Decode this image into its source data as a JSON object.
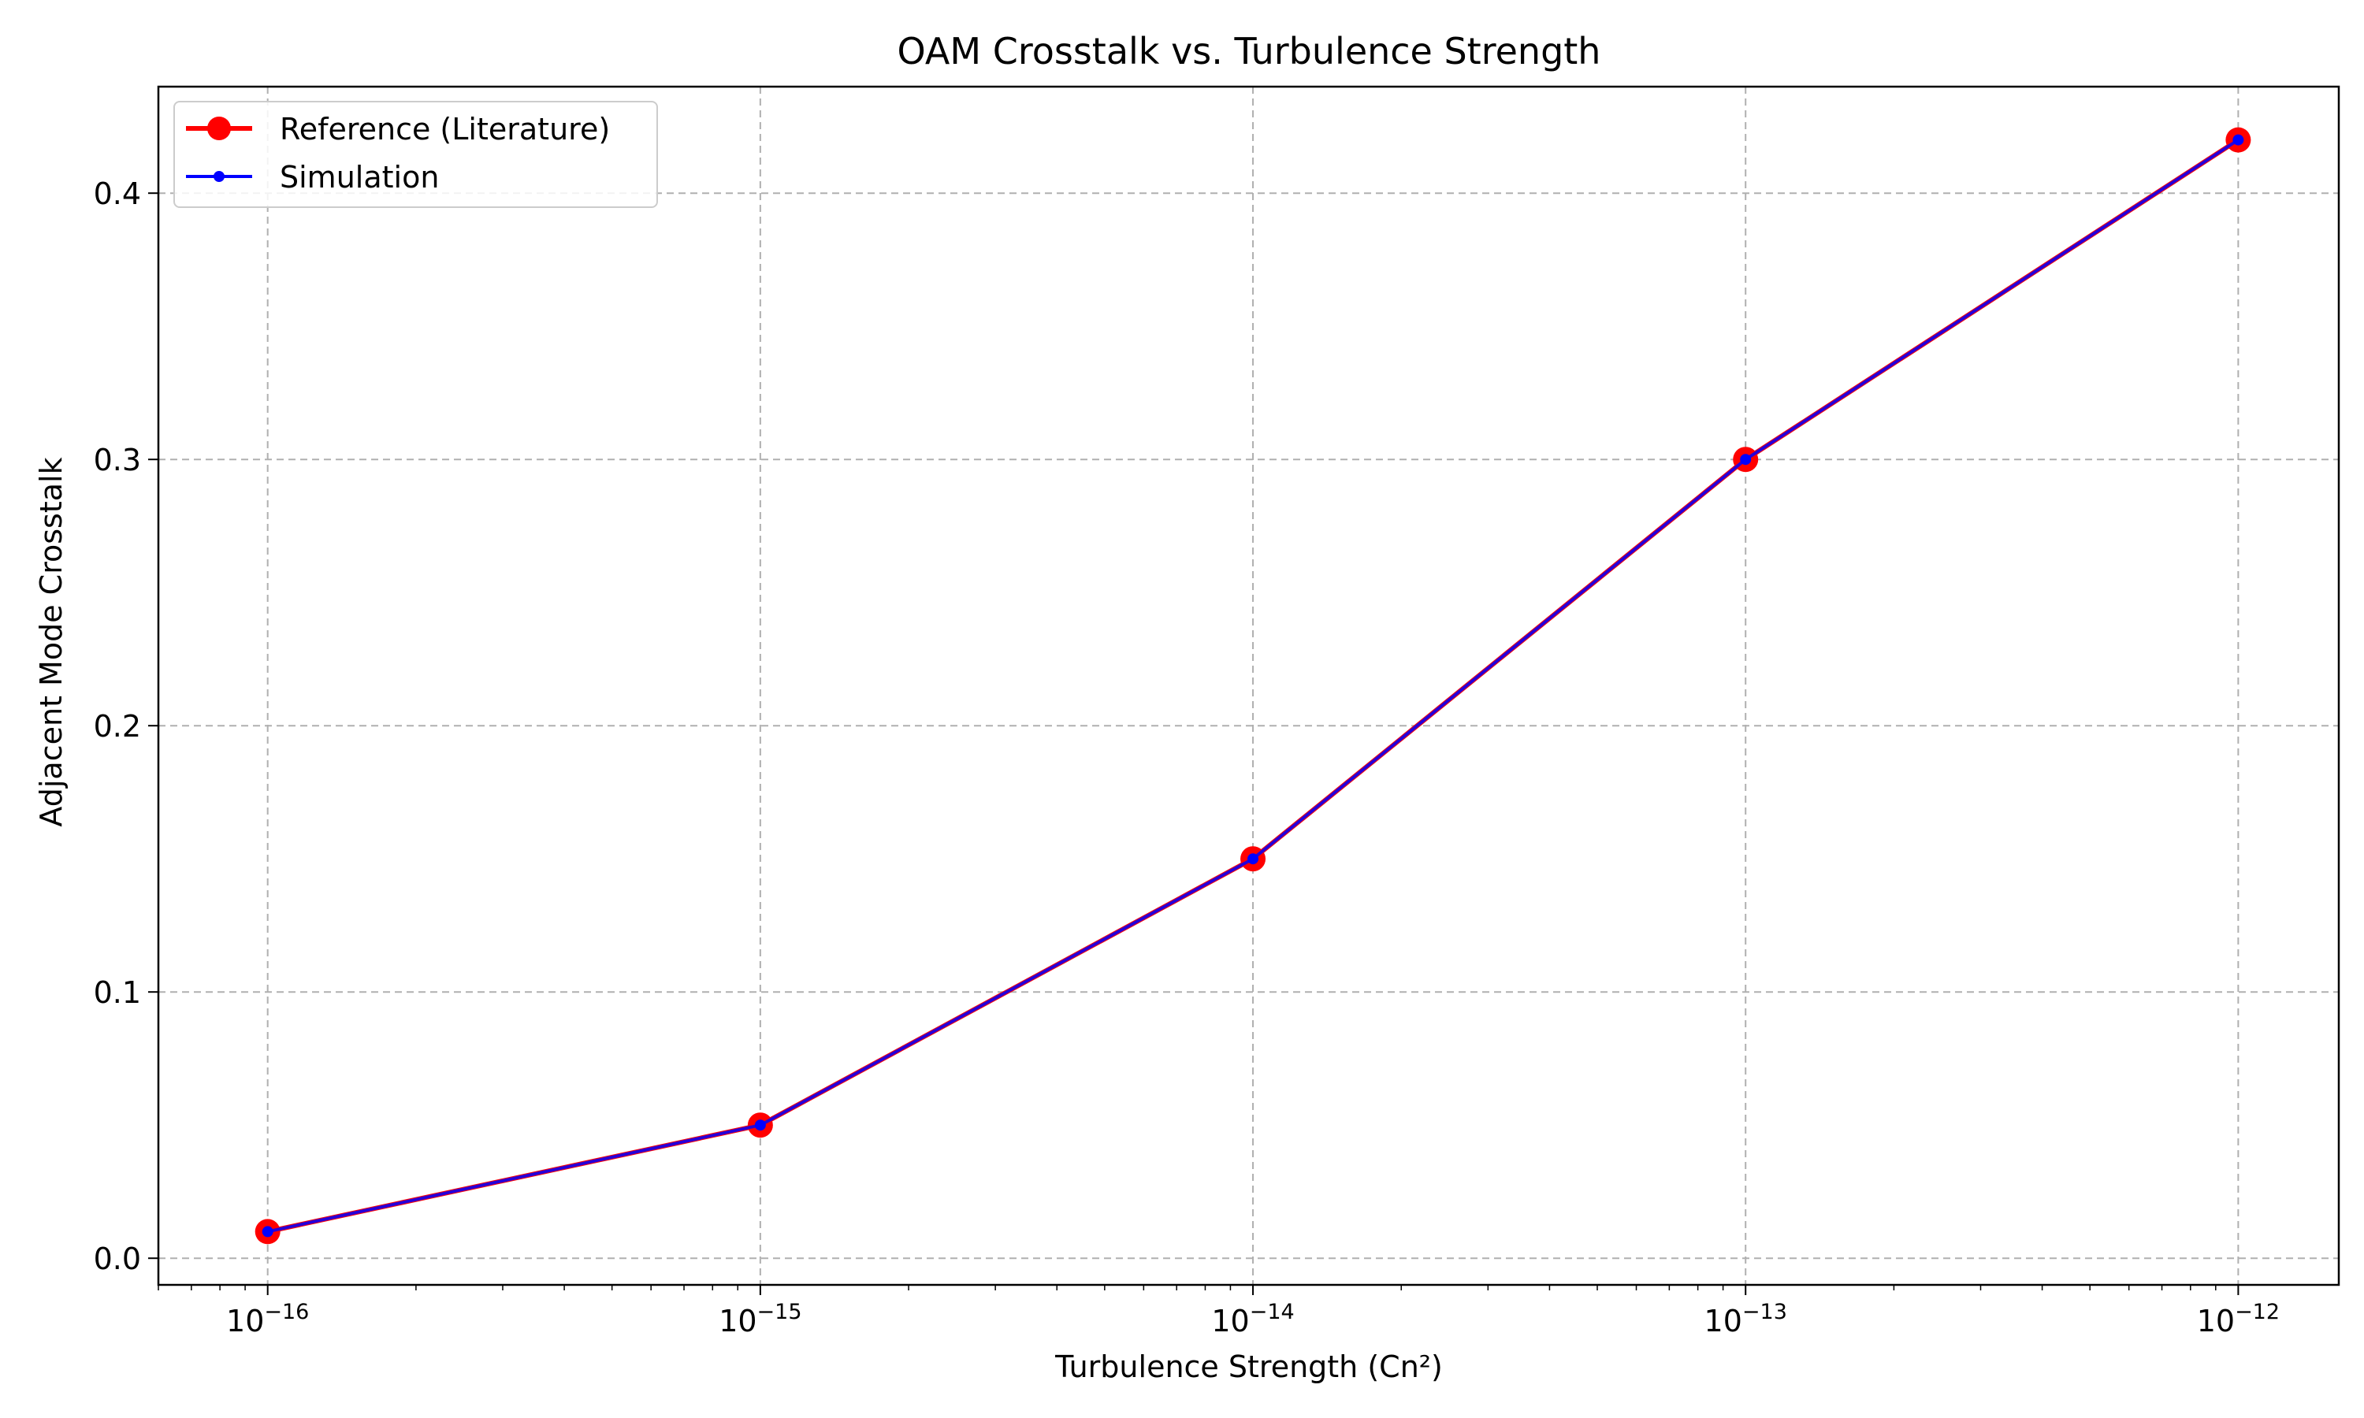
{
  "chart_data": {
    "type": "line",
    "title": "OAM Crosstalk vs. Turbulence Strength",
    "xlabel": "Turbulence Strength (Cn²)",
    "ylabel": "Adjacent Mode Crosstalk",
    "xscale": "log",
    "x": [
      1e-16,
      1e-15,
      1e-14,
      1e-13,
      1e-12
    ],
    "series": [
      {
        "name": "Reference (Literature)",
        "values": [
          0.01,
          0.05,
          0.15,
          0.3,
          0.42
        ],
        "color": "#ff0000",
        "marker": "large-circle"
      },
      {
        "name": "Simulation",
        "values": [
          0.01,
          0.05,
          0.15,
          0.3,
          0.42
        ],
        "color": "#0000ff",
        "marker": "small-dot"
      }
    ],
    "xlim": [
      6e-17,
      1.6e-12
    ],
    "ylim": [
      -0.01,
      0.44
    ],
    "xticks": [
      {
        "value": 1e-16,
        "base": "10",
        "exp": "−16"
      },
      {
        "value": 1e-15,
        "base": "10",
        "exp": "−15"
      },
      {
        "value": 1e-14,
        "base": "10",
        "exp": "−14"
      },
      {
        "value": 1e-13,
        "base": "10",
        "exp": "−13"
      },
      {
        "value": 1e-12,
        "base": "10",
        "exp": "−12"
      }
    ],
    "yticks": [
      {
        "value": 0.0,
        "label": "0.0"
      },
      {
        "value": 0.1,
        "label": "0.1"
      },
      {
        "value": 0.2,
        "label": "0.2"
      },
      {
        "value": 0.3,
        "label": "0.3"
      },
      {
        "value": 0.4,
        "label": "0.4"
      }
    ],
    "grid": true,
    "legend_position": "top-left"
  }
}
